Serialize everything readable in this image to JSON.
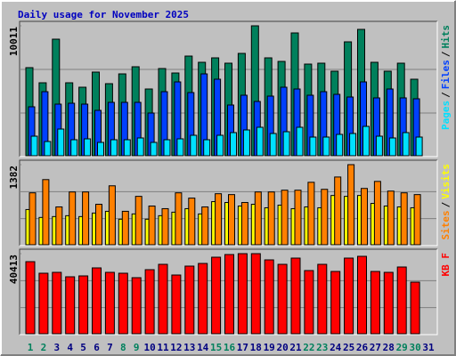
{
  "chart_data": [
    {
      "type": "bar",
      "title": "Daily usage for November 2025",
      "ylim": [
        0,
        10011
      ],
      "yticks": [
        10011
      ],
      "legend_separator": "/",
      "series": [
        {
          "name": "Hits",
          "color": "#00805c",
          "values": [
            6810,
            5652,
            8989,
            5652,
            5312,
            6470,
            5584,
            6333,
            6878,
            5176,
            6742,
            6401,
            7695,
            7219,
            7559,
            7151,
            7900,
            10011,
            7559,
            7287,
            9466,
            7082,
            7151,
            6538,
            8785,
            9738,
            7219,
            6538,
            7151,
            5925,
            null
          ]
        },
        {
          "name": "Files",
          "color": "#0040ff",
          "values": [
            3814,
            4971,
            4018,
            4086,
            4018,
            3541,
            4154,
            4154,
            4154,
            3337,
            4971,
            5720,
            4903,
            6333,
            5925,
            3950,
            4699,
            4222,
            4631,
            5312,
            5176,
            4699,
            4971,
            4767,
            4563,
            5720,
            4495,
            5176,
            4495,
            4427,
            null
          ]
        },
        {
          "name": "Pages",
          "color": "#00e0ff",
          "values": [
            1566,
            1158,
            2111,
            1294,
            1362,
            1090,
            1294,
            1294,
            1430,
            1090,
            1294,
            1362,
            1634,
            1294,
            1634,
            1839,
            2043,
            2247,
            1771,
            1907,
            2247,
            1498,
            1498,
            1703,
            1771,
            2315,
            1566,
            1430,
            1839,
            1498,
            null
          ]
        }
      ]
    },
    {
      "type": "bar",
      "ylim": [
        0,
        1382
      ],
      "yticks": [
        1382
      ],
      "legend_separator": "/",
      "series": [
        {
          "name": "Visits",
          "color": "#ffff00",
          "values": [
            616,
            481,
            496,
            511,
            496,
            556,
            586,
            451,
            541,
            451,
            511,
            571,
            631,
            541,
            751,
            736,
            676,
            706,
            646,
            691,
            631,
            661,
            646,
            856,
            841,
            856,
            721,
            676,
            661,
            646,
            null
          ]
        },
        {
          "name": "Sites",
          "color": "#ff8000",
          "values": [
            901,
            1127,
            661,
            916,
            916,
            706,
            1021,
            586,
            841,
            676,
            631,
            901,
            811,
            661,
            886,
            871,
            736,
            916,
            916,
            946,
            946,
            1081,
            961,
            1171,
            1382,
            976,
            1096,
            931,
            901,
            871,
            null
          ]
        }
      ]
    },
    {
      "type": "bar",
      "ylim": [
        0,
        40413
      ],
      "yticks": [
        40413
      ],
      "categories": [
        "1",
        "2",
        "3",
        "4",
        "5",
        "6",
        "7",
        "8",
        "9",
        "10",
        "11",
        "12",
        "13",
        "14",
        "15",
        "16",
        "17",
        "18",
        "19",
        "20",
        "21",
        "22",
        "23",
        "24",
        "25",
        "26",
        "27",
        "28",
        "29",
        "30",
        "31"
      ],
      "category_colors": [
        "#00805c",
        "#00805c",
        "#000080",
        "#000080",
        "#000080",
        "#000080",
        "#000080",
        "#00805c",
        "#00805c",
        "#000080",
        "#000080",
        "#000080",
        "#000080",
        "#000080",
        "#00805c",
        "#00805c",
        "#000080",
        "#000080",
        "#000080",
        "#000080",
        "#000080",
        "#00805c",
        "#00805c",
        "#000080",
        "#000080",
        "#000080",
        "#000080",
        "#000080",
        "#00805c",
        "#00805c",
        "#000080"
      ],
      "series": [
        {
          "name": "KB F",
          "color": "#ff0000",
          "values": [
            36416,
            30643,
            31087,
            28867,
            29311,
            33308,
            31087,
            30643,
            28422,
            32419,
            35084,
            29755,
            34196,
            35528,
            38637,
            39969,
            40413,
            40413,
            37304,
            35084,
            38193,
            31975,
            35084,
            31531,
            38193,
            39081,
            31531,
            31087,
            33752,
            26202,
            null
          ]
        }
      ]
    }
  ]
}
